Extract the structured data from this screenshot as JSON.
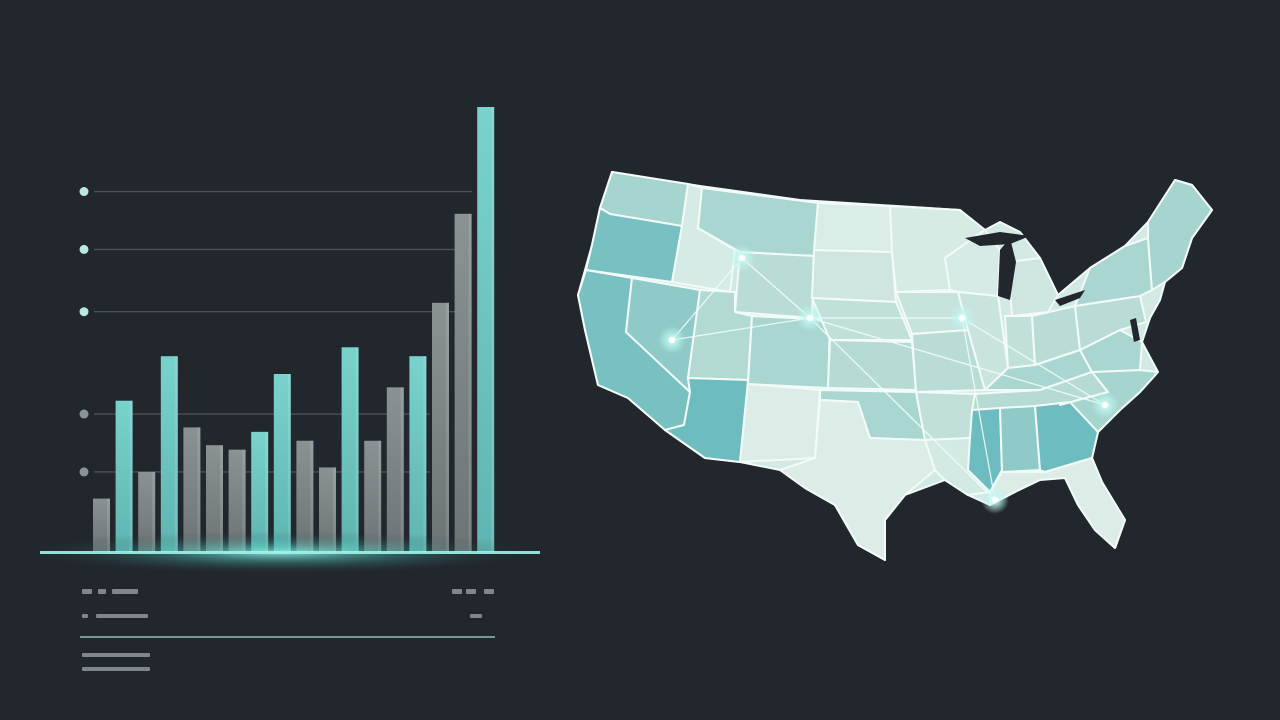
{
  "theme": {
    "background": "#22262d",
    "teal": "#6cc4c0",
    "teal_glow": "#7fe3d8",
    "gray_bar": "#7b8384",
    "grid_line": "#4b5157",
    "map_light": "#d9ece6",
    "map_mid": "#a9d6d0",
    "map_dark": "#6cbcc0",
    "map_border": "#f3fbf8"
  },
  "chart_data": {
    "type": "bar",
    "ylim": [
      0,
      100
    ],
    "bars": [
      {
        "value": 12,
        "color": "gray"
      },
      {
        "value": 34,
        "color": "teal"
      },
      {
        "value": 18,
        "color": "gray"
      },
      {
        "value": 44,
        "color": "teal"
      },
      {
        "value": 28,
        "color": "gray"
      },
      {
        "value": 24,
        "color": "gray"
      },
      {
        "value": 23,
        "color": "gray"
      },
      {
        "value": 27,
        "color": "teal"
      },
      {
        "value": 40,
        "color": "teal"
      },
      {
        "value": 25,
        "color": "gray"
      },
      {
        "value": 19,
        "color": "gray"
      },
      {
        "value": 46,
        "color": "teal"
      },
      {
        "value": 25,
        "color": "gray"
      },
      {
        "value": 37,
        "color": "gray"
      },
      {
        "value": 44,
        "color": "teal"
      },
      {
        "value": 56,
        "color": "gray"
      },
      {
        "value": 76,
        "color": "gray"
      },
      {
        "value": 100,
        "color": "teal"
      }
    ],
    "gridlines": [
      81,
      68,
      54,
      31,
      18
    ],
    "grid": true,
    "legend": "none"
  },
  "map": {
    "type": "choropleth",
    "region": "United States",
    "highlighted_hubs": 6
  }
}
